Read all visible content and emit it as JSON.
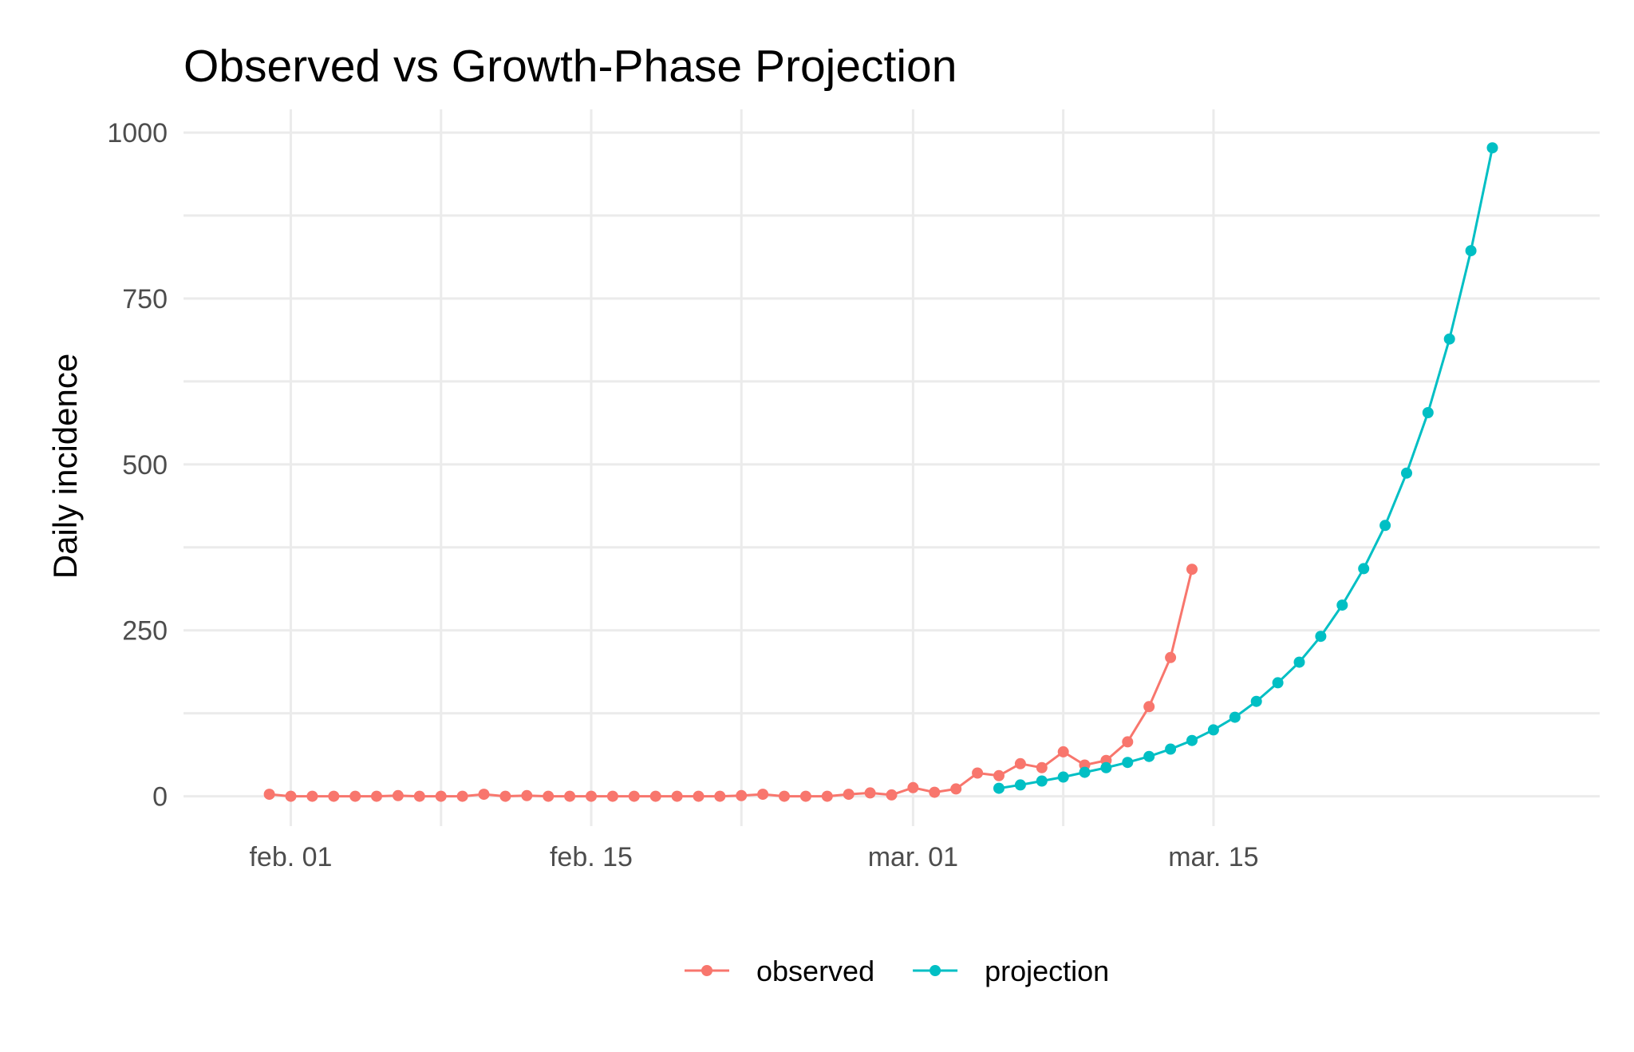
{
  "chart_data": {
    "type": "line",
    "title": "Observed vs Growth-Phase Projection",
    "xlabel": "",
    "ylabel": "Daily incidence",
    "x_tick_labels": [
      "feb. 01",
      "feb. 15",
      "mar. 01",
      "mar. 15"
    ],
    "x_tick_dates": [
      "2020-02-01",
      "2020-02-15",
      "2020-03-01",
      "2020-03-15"
    ],
    "y_ticks": [
      0,
      250,
      500,
      750,
      1000
    ],
    "xlim": [
      "2020-01-27",
      "2020-04-02"
    ],
    "ylim": [
      -45,
      1035
    ],
    "grid": true,
    "legend_position": "bottom",
    "series": [
      {
        "name": "observed",
        "color": "#F8766D",
        "points": [
          [
            "2020-01-31",
            3
          ],
          [
            "2020-02-01",
            0
          ],
          [
            "2020-02-02",
            0
          ],
          [
            "2020-02-03",
            0
          ],
          [
            "2020-02-04",
            0
          ],
          [
            "2020-02-05",
            0
          ],
          [
            "2020-02-06",
            1
          ],
          [
            "2020-02-07",
            0
          ],
          [
            "2020-02-08",
            0
          ],
          [
            "2020-02-09",
            0
          ],
          [
            "2020-02-10",
            3
          ],
          [
            "2020-02-11",
            0
          ],
          [
            "2020-02-12",
            1
          ],
          [
            "2020-02-13",
            0
          ],
          [
            "2020-02-14",
            0
          ],
          [
            "2020-02-15",
            0
          ],
          [
            "2020-02-16",
            0
          ],
          [
            "2020-02-17",
            0
          ],
          [
            "2020-02-18",
            0
          ],
          [
            "2020-02-19",
            0
          ],
          [
            "2020-02-20",
            0
          ],
          [
            "2020-02-21",
            0
          ],
          [
            "2020-02-22",
            1
          ],
          [
            "2020-02-23",
            3
          ],
          [
            "2020-02-24",
            0
          ],
          [
            "2020-02-25",
            0
          ],
          [
            "2020-02-26",
            0
          ],
          [
            "2020-02-27",
            3
          ],
          [
            "2020-02-28",
            5
          ],
          [
            "2020-02-29",
            2
          ],
          [
            "2020-03-01",
            13
          ],
          [
            "2020-03-02",
            6
          ],
          [
            "2020-03-03",
            11
          ],
          [
            "2020-03-04",
            35
          ],
          [
            "2020-03-05",
            31
          ],
          [
            "2020-03-06",
            49
          ],
          [
            "2020-03-07",
            43
          ],
          [
            "2020-03-08",
            67
          ],
          [
            "2020-03-09",
            47
          ],
          [
            "2020-03-10",
            54
          ],
          [
            "2020-03-11",
            82
          ],
          [
            "2020-03-12",
            135
          ],
          [
            "2020-03-13",
            209
          ],
          [
            "2020-03-14",
            342
          ]
        ]
      },
      {
        "name": "projection",
        "color": "#00BFC4",
        "points": [
          [
            "2020-03-05",
            12
          ],
          [
            "2020-03-06",
            17
          ],
          [
            "2020-03-07",
            23
          ],
          [
            "2020-03-08",
            29
          ],
          [
            "2020-03-09",
            36
          ],
          [
            "2020-03-10",
            43
          ],
          [
            "2020-03-11",
            51
          ],
          [
            "2020-03-12",
            60
          ],
          [
            "2020-03-13",
            71
          ],
          [
            "2020-03-14",
            84
          ],
          [
            "2020-03-15",
            100
          ],
          [
            "2020-03-16",
            119
          ],
          [
            "2020-03-17",
            143
          ],
          [
            "2020-03-18",
            171
          ],
          [
            "2020-03-19",
            202
          ],
          [
            "2020-03-20",
            241
          ],
          [
            "2020-03-21",
            288
          ],
          [
            "2020-03-22",
            343
          ],
          [
            "2020-03-23",
            408
          ],
          [
            "2020-03-24",
            487
          ],
          [
            "2020-03-25",
            578
          ],
          [
            "2020-03-26",
            689
          ],
          [
            "2020-03-27",
            822
          ],
          [
            "2020-03-28",
            977
          ]
        ]
      }
    ]
  }
}
